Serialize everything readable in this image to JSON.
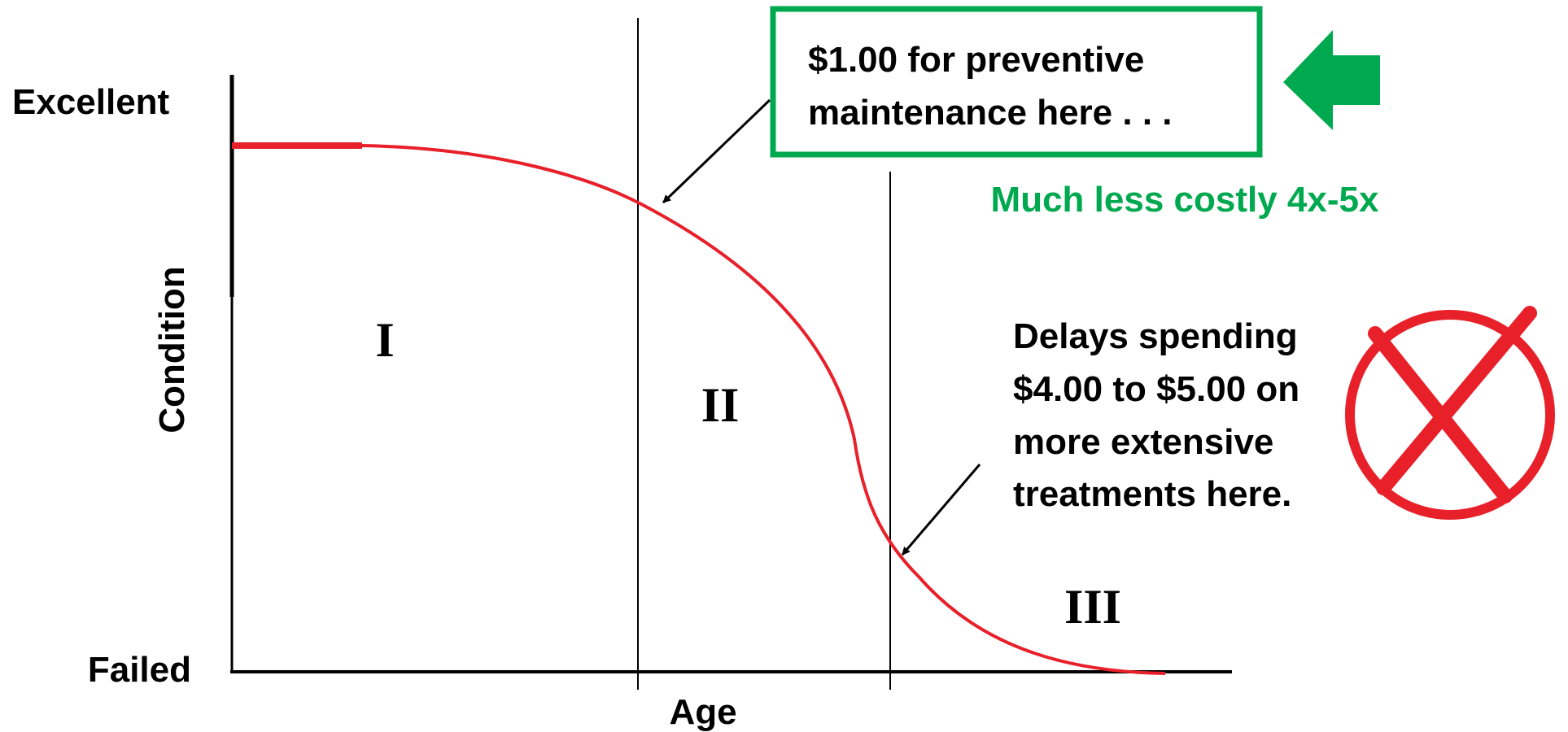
{
  "axes": {
    "y_top": "Excellent",
    "y_bottom": "Failed",
    "y_label": "Condition",
    "x_label": "Age"
  },
  "zones": [
    "I",
    "II",
    "III"
  ],
  "callout_top": {
    "lines": [
      "$1.00 for preventive",
      "maintenance here . . ."
    ],
    "note": "Much less costly 4x-5x"
  },
  "callout_bottom": {
    "lines": [
      "Delays spending",
      "$4.00 to $5.00 on",
      "more extensive",
      "treatments here."
    ]
  }
}
